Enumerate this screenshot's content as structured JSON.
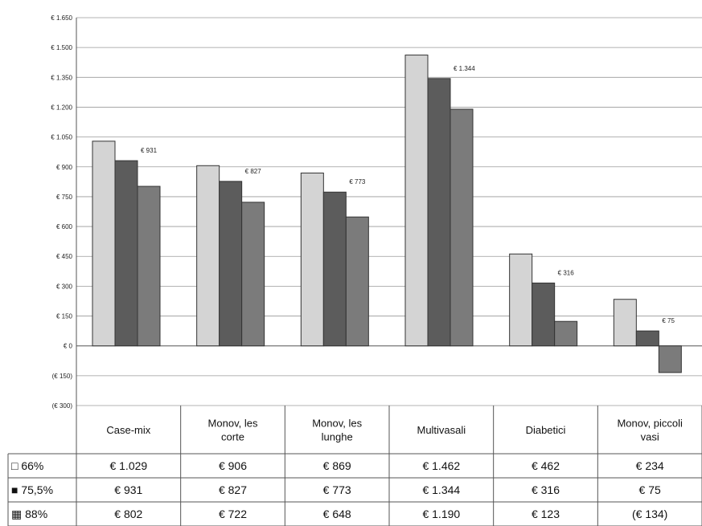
{
  "chart_data": {
    "type": "bar",
    "title": "",
    "xlabel": "",
    "ylabel": "",
    "ylim": [
      -300,
      1650
    ],
    "grid": true,
    "legend": "data-table-left",
    "yticks": [
      {
        "value": 1650,
        "label": "€ 1.650"
      },
      {
        "value": 1500,
        "label": "€ 1.500"
      },
      {
        "value": 1350,
        "label": "€ 1.350"
      },
      {
        "value": 1200,
        "label": "€ 1.200"
      },
      {
        "value": 1050,
        "label": "€ 1.050"
      },
      {
        "value": 900,
        "label": "€ 900"
      },
      {
        "value": 750,
        "label": "€ 750"
      },
      {
        "value": 600,
        "label": "€ 600"
      },
      {
        "value": 450,
        "label": "€ 450"
      },
      {
        "value": 300,
        "label": "€ 300"
      },
      {
        "value": 150,
        "label": "€ 150"
      },
      {
        "value": 0,
        "label": "€ 0"
      },
      {
        "value": -150,
        "label": "(€ 150)"
      },
      {
        "value": -300,
        "label": "(€ 300)"
      }
    ],
    "categories": [
      [
        "Case-mix"
      ],
      [
        "Monov, les",
        "corte"
      ],
      [
        "Monov, les",
        "lunghe"
      ],
      [
        "Multivasali"
      ],
      [
        "Diabetici"
      ],
      [
        "Monov, piccoli",
        "vasi"
      ]
    ],
    "series": [
      {
        "name": "66%",
        "color": "#d4d4d4",
        "marker": "□",
        "values": [
          1029,
          906,
          869,
          1462,
          462,
          234
        ],
        "labels": [
          "€ 1.029",
          "€ 906",
          "€ 869",
          "€ 1.462",
          "€ 462",
          "€ 234"
        ]
      },
      {
        "name": "75,5%",
        "color": "#5c5c5c",
        "marker": "■",
        "values": [
          931,
          827,
          773,
          1344,
          316,
          75
        ],
        "labels": [
          "€ 931",
          "€ 827",
          "€ 773",
          "€ 1.344",
          "€ 316",
          "€ 75"
        ]
      },
      {
        "name": "88%",
        "color": "#7b7b7b",
        "marker": "▦",
        "values": [
          802,
          722,
          648,
          1190,
          123,
          -134
        ],
        "labels": [
          "€ 802",
          "€ 722",
          "€ 648",
          "€ 1.190",
          "€ 123",
          "(€ 134)"
        ]
      }
    ],
    "data_labels": [
      {
        "series": 1,
        "index": 0,
        "text": "€ 931"
      },
      {
        "series": 1,
        "index": 1,
        "text": "€ 827"
      },
      {
        "series": 1,
        "index": 2,
        "text": "€ 773"
      },
      {
        "series": 1,
        "index": 3,
        "text": "€ 1.344"
      },
      {
        "series": 1,
        "index": 4,
        "text": "€ 316"
      },
      {
        "series": 1,
        "index": 5,
        "text": "€ 75"
      }
    ]
  }
}
